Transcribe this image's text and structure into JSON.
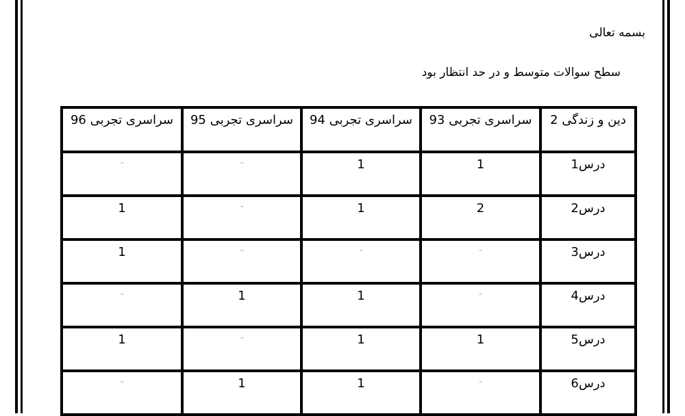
{
  "document": {
    "salutation": "بسمه تعالی",
    "note": "سطح سوالات متوسط و در حد انتظار بود",
    "table": {
      "headers": [
        "دین و زندگی 2",
        "سراسری تجربی 93",
        "سراسری تجربی 94",
        "سراسری تجربی 95",
        "سراسری تجربی 96"
      ],
      "rows": [
        [
          "درس1",
          "1",
          "1",
          "-",
          "-"
        ],
        [
          "درس2",
          "2",
          "1",
          "-",
          "1"
        ],
        [
          "درس3",
          "-",
          "-",
          "-",
          "1"
        ],
        [
          "درس4",
          "-",
          "1",
          "1",
          "-"
        ],
        [
          "درس5",
          "1",
          "1",
          "-",
          "1"
        ],
        [
          "درس6",
          "-",
          "1",
          "1",
          "-"
        ]
      ]
    }
  }
}
